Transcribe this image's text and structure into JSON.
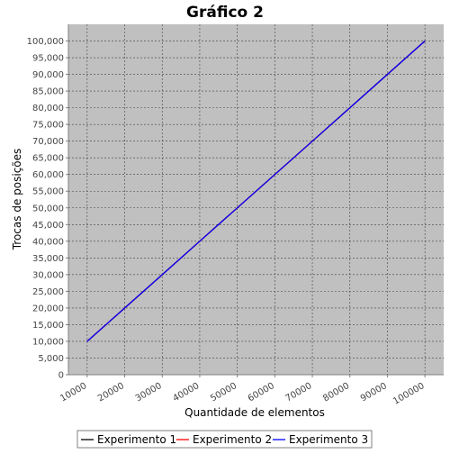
{
  "chart_data": {
    "type": "line",
    "title": "Gráfico 2",
    "xlabel": "Quantidade de elementos",
    "ylabel": "Trocas de posições",
    "x_categories": [
      "10000",
      "20000",
      "30000",
      "40000",
      "50000",
      "60000",
      "70000",
      "80000",
      "90000",
      "100000"
    ],
    "x": [
      10000,
      20000,
      30000,
      40000,
      50000,
      60000,
      70000,
      80000,
      90000,
      100000
    ],
    "xlim": [
      5000,
      105000
    ],
    "ylim": [
      0,
      105000
    ],
    "y_ticks": [
      0,
      5000,
      10000,
      15000,
      20000,
      25000,
      30000,
      35000,
      40000,
      45000,
      50000,
      55000,
      60000,
      65000,
      70000,
      75000,
      80000,
      85000,
      90000,
      95000,
      100000
    ],
    "y_tick_labels": [
      "0",
      "5,000",
      "10,000",
      "15,000",
      "20,000",
      "25,000",
      "30,000",
      "35,000",
      "40,000",
      "45,000",
      "50,000",
      "55,000",
      "60,000",
      "65,000",
      "70,000",
      "75,000",
      "80,000",
      "85,000",
      "90,000",
      "95,000",
      "100,000"
    ],
    "grid": true,
    "series": [
      {
        "name": "Experimento 1",
        "color": "#000000",
        "values": [
          10000,
          20000,
          30000,
          40000,
          50000,
          60000,
          70000,
          80000,
          90000,
          100000
        ]
      },
      {
        "name": "Experimento 2",
        "color": "#ff0000",
        "values": [
          10000,
          20000,
          30000,
          40000,
          50000,
          60000,
          70000,
          80000,
          90000,
          100000
        ]
      },
      {
        "name": "Experimento 3",
        "color": "#0000ff",
        "values": [
          10000,
          20000,
          30000,
          40000,
          50000,
          60000,
          70000,
          80000,
          90000,
          100000
        ]
      }
    ],
    "legend": "bottom",
    "plot_background": "#c0c0c0",
    "grid_color": "#404040"
  }
}
